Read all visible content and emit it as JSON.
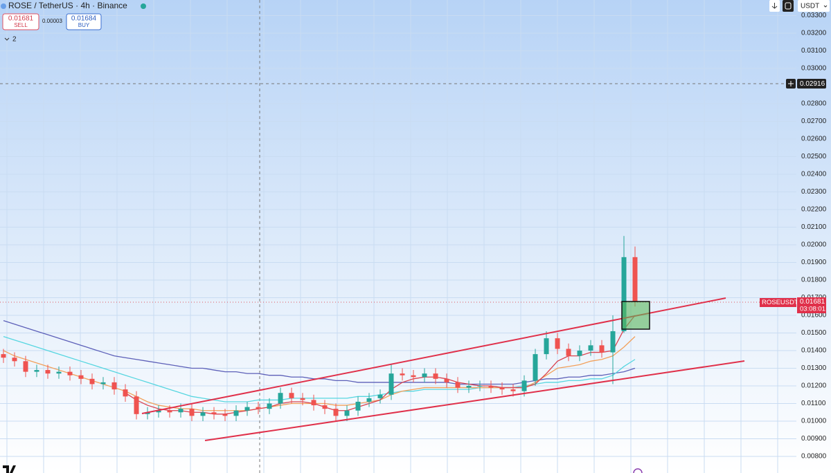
{
  "header": {
    "symbol": "ROSE / TetherUS · 4h · Binance",
    "sell_price": "0.01681",
    "sell_label": "SELL",
    "spread": "0.00003",
    "buy_price": "0.01684",
    "buy_label": "BUY",
    "indicators": "2",
    "currency": "USDT"
  },
  "price_labels": {
    "symbol": "ROSEUSDT",
    "last_price": "0.01681",
    "countdown": "03:08:01",
    "crosshair_price": "0.02916"
  },
  "chart_data": {
    "type": "candlestick",
    "ylim": [
      0.00706,
      0.03388
    ],
    "yticks": [
      {
        "value": 0.008,
        "label": "0.00800"
      },
      {
        "value": 0.009,
        "label": "0.00900"
      },
      {
        "value": 0.01,
        "label": "0.01000"
      },
      {
        "value": 0.011,
        "label": "0.01100"
      },
      {
        "value": 0.012,
        "label": "0.01200"
      },
      {
        "value": 0.013,
        "label": "0.01300"
      },
      {
        "value": 0.014,
        "label": "0.01400"
      },
      {
        "value": 0.015,
        "label": "0.01500"
      },
      {
        "value": 0.016,
        "label": "0.01600"
      },
      {
        "value": 0.017,
        "label": "0.01700"
      },
      {
        "value": 0.018,
        "label": "0.01800"
      },
      {
        "value": 0.019,
        "label": "0.01900"
      },
      {
        "value": 0.02,
        "label": "0.02000"
      },
      {
        "value": 0.021,
        "label": "0.02100"
      },
      {
        "value": 0.022,
        "label": "0.02200"
      },
      {
        "value": 0.023,
        "label": "0.02300"
      },
      {
        "value": 0.024,
        "label": "0.02400"
      },
      {
        "value": 0.025,
        "label": "0.02500"
      },
      {
        "value": 0.026,
        "label": "0.02600"
      },
      {
        "value": 0.027,
        "label": "0.02700"
      },
      {
        "value": 0.028,
        "label": "0.02800"
      },
      {
        "value": 0.03,
        "label": "0.03000"
      },
      {
        "value": 0.031,
        "label": "0.03100"
      },
      {
        "value": 0.032,
        "label": "0.03200"
      },
      {
        "value": 0.033,
        "label": "0.03300"
      }
    ],
    "grid": true,
    "up_color": "#26a69a",
    "down_color": "#ef5350",
    "open": [
      0.0138,
      0.0136,
      0.0134,
      0.0128,
      0.0129,
      0.0127,
      0.0128,
      0.0126,
      0.0124,
      0.0121,
      0.0122,
      0.0118,
      0.0114,
      0.0104,
      0.0105,
      0.0106,
      0.0105,
      0.0107,
      0.0103,
      0.0105,
      0.0104,
      0.0103,
      0.0106,
      0.0108,
      0.0107,
      0.011,
      0.0116,
      0.0113,
      0.0112,
      0.0109,
      0.0107,
      0.0103,
      0.0106,
      0.0111,
      0.0113,
      0.0115,
      0.0127,
      0.0126,
      0.0125,
      0.0127,
      0.0124,
      0.0122,
      0.0119,
      0.012,
      0.012,
      0.0119,
      0.0118,
      0.0117,
      0.0123,
      0.0138,
      0.0147,
      0.0141,
      0.0137,
      0.014,
      0.0143,
      0.0139,
      0.0151,
      0.0193
    ],
    "high": [
      0.0141,
      0.0139,
      0.0137,
      0.0132,
      0.0132,
      0.0131,
      0.0131,
      0.0129,
      0.0127,
      0.0125,
      0.0125,
      0.0121,
      0.0117,
      0.0108,
      0.0109,
      0.0109,
      0.011,
      0.011,
      0.0108,
      0.0108,
      0.0107,
      0.0109,
      0.0111,
      0.0111,
      0.0113,
      0.0119,
      0.0119,
      0.0116,
      0.0115,
      0.0112,
      0.011,
      0.0109,
      0.0114,
      0.0116,
      0.0118,
      0.0132,
      0.013,
      0.0129,
      0.013,
      0.013,
      0.0127,
      0.0125,
      0.0123,
      0.0123,
      0.0123,
      0.0122,
      0.0121,
      0.0126,
      0.0141,
      0.0151,
      0.015,
      0.0144,
      0.0143,
      0.0146,
      0.0146,
      0.016,
      0.0205,
      0.0199
    ],
    "low": [
      0.0133,
      0.0131,
      0.0125,
      0.0125,
      0.0124,
      0.0124,
      0.0123,
      0.0121,
      0.0118,
      0.0118,
      0.0115,
      0.0111,
      0.0101,
      0.0101,
      0.0102,
      0.0102,
      0.0102,
      0.01,
      0.01,
      0.0101,
      0.01,
      0.01,
      0.0103,
      0.0104,
      0.0104,
      0.0107,
      0.011,
      0.0109,
      0.0106,
      0.0104,
      0.01,
      0.01,
      0.0103,
      0.0108,
      0.011,
      0.0112,
      0.0123,
      0.0122,
      0.0122,
      0.0121,
      0.0119,
      0.0116,
      0.0116,
      0.0117,
      0.0116,
      0.0115,
      0.0114,
      0.0114,
      0.012,
      0.0135,
      0.0138,
      0.0134,
      0.0134,
      0.0137,
      0.0136,
      0.0121,
      0.015,
      0.0165
    ],
    "close": [
      0.0136,
      0.0134,
      0.0128,
      0.0129,
      0.0127,
      0.0128,
      0.0126,
      0.0124,
      0.0121,
      0.0122,
      0.0118,
      0.0114,
      0.0104,
      0.0105,
      0.0106,
      0.0105,
      0.0107,
      0.0103,
      0.0105,
      0.0104,
      0.0103,
      0.0106,
      0.0108,
      0.0107,
      0.011,
      0.0116,
      0.0113,
      0.0112,
      0.0109,
      0.0107,
      0.0103,
      0.0106,
      0.0111,
      0.0113,
      0.0115,
      0.0127,
      0.0126,
      0.0125,
      0.0127,
      0.0124,
      0.0122,
      0.0119,
      0.012,
      0.012,
      0.0119,
      0.0118,
      0.0117,
      0.0123,
      0.0138,
      0.0147,
      0.0141,
      0.0137,
      0.014,
      0.0143,
      0.0139,
      0.0151,
      0.0193,
      0.0168
    ],
    "moving_averages": [
      {
        "color": "#5c5fb8",
        "values": [
          0.0157,
          0.0155,
          0.0153,
          0.0151,
          0.0149,
          0.0147,
          0.0145,
          0.0143,
          0.0141,
          0.0139,
          0.0137,
          0.0136,
          0.0135,
          0.0134,
          0.0133,
          0.0132,
          0.0131,
          0.013,
          0.013,
          0.0129,
          0.0128,
          0.0128,
          0.0127,
          0.0127,
          0.0126,
          0.0126,
          0.0125,
          0.0125,
          0.0124,
          0.0124,
          0.0123,
          0.0123,
          0.0122,
          0.0122,
          0.0122,
          0.0122,
          0.0122,
          0.0122,
          0.0122,
          0.0122,
          0.0122,
          0.0121,
          0.0121,
          0.0121,
          0.0121,
          0.0121,
          0.0121,
          0.0122,
          0.0123,
          0.0124,
          0.0124,
          0.0125,
          0.0125,
          0.0126,
          0.0126,
          0.0127,
          0.0128,
          0.013
        ]
      },
      {
        "color": "#56d6e0",
        "values": [
          0.0148,
          0.0146,
          0.0144,
          0.0142,
          0.014,
          0.0138,
          0.0136,
          0.0134,
          0.0132,
          0.013,
          0.0128,
          0.0126,
          0.0124,
          0.0122,
          0.012,
          0.0118,
          0.0116,
          0.0114,
          0.0113,
          0.0112,
          0.0111,
          0.0111,
          0.0111,
          0.0112,
          0.0112,
          0.0112,
          0.0113,
          0.0113,
          0.0113,
          0.0113,
          0.0113,
          0.0113,
          0.0114,
          0.0114,
          0.0115,
          0.0116,
          0.0117,
          0.0117,
          0.0118,
          0.0118,
          0.0118,
          0.0118,
          0.0118,
          0.0119,
          0.0119,
          0.0119,
          0.0119,
          0.012,
          0.0121,
          0.0122,
          0.0122,
          0.0123,
          0.0123,
          0.0124,
          0.0124,
          0.0126,
          0.0131,
          0.0135
        ]
      },
      {
        "color": "#f2a05a",
        "values": [
          0.014,
          0.0137,
          0.0135,
          0.0133,
          0.0131,
          0.0129,
          0.0127,
          0.0125,
          0.0123,
          0.0121,
          0.0119,
          0.0117,
          0.0114,
          0.0111,
          0.0109,
          0.0108,
          0.0107,
          0.0107,
          0.0106,
          0.0106,
          0.0106,
          0.0106,
          0.0106,
          0.0107,
          0.0108,
          0.0109,
          0.011,
          0.011,
          0.011,
          0.011,
          0.0109,
          0.0109,
          0.011,
          0.0111,
          0.0112,
          0.0115,
          0.0117,
          0.0118,
          0.0119,
          0.0119,
          0.0119,
          0.0119,
          0.0119,
          0.0119,
          0.0119,
          0.0119,
          0.0119,
          0.0119,
          0.0122,
          0.0126,
          0.013,
          0.0131,
          0.0132,
          0.0134,
          0.0135,
          0.0137,
          0.0142,
          0.0148
        ]
      },
      {
        "color": "#d9424f",
        "values": [
          null,
          null,
          null,
          null,
          null,
          null,
          null,
          null,
          null,
          null,
          null,
          0.0116,
          0.0112,
          0.0109,
          0.0107,
          0.0106,
          0.0106,
          0.0105,
          0.0105,
          0.0104,
          0.0104,
          0.0105,
          0.0106,
          0.0107,
          0.0108,
          0.011,
          0.0111,
          0.0111,
          0.011,
          0.0108,
          0.0106,
          0.0106,
          0.0108,
          0.011,
          0.0112,
          0.0118,
          0.0122,
          0.0124,
          0.0125,
          0.0125,
          0.0124,
          0.0122,
          0.0121,
          0.012,
          0.012,
          0.0119,
          0.0119,
          0.0119,
          0.0121,
          0.0127,
          0.0134,
          0.0137,
          0.0137,
          0.0139,
          0.0139,
          0.014,
          0.0152,
          0.016
        ]
      }
    ]
  }
}
